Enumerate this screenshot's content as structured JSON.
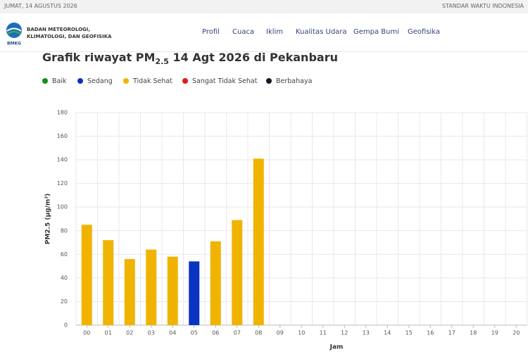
{
  "topbar": {
    "date": "JUMAT, 14 AGUSTUS 2026",
    "timezone": "STANDAR WAKTU INDONESIA"
  },
  "header": {
    "org_line1": "BADAN METEOROLOGI,",
    "org_line2": "KLIMATOLOGI, DAN GEOFISIKA",
    "logo_text": "BMKG",
    "nav": [
      "Profil",
      "Cuaca",
      "Iklim",
      "Kualitas Udara",
      "Gempa Bumi",
      "Geofisika"
    ]
  },
  "chart_data": {
    "type": "bar",
    "title": {
      "prefix": "Grafik riwayat PM",
      "sub": "2.5",
      "suffix": "14 Agt 2026 di Pekanbaru"
    },
    "legend": [
      {
        "name": "Baik",
        "color": "#16901c"
      },
      {
        "name": "Sedang",
        "color": "#0a33c2"
      },
      {
        "name": "Tidak Sehat",
        "color": "#f0b400"
      },
      {
        "name": "Sangat Tidak Sehat",
        "color": "#e31b1b"
      },
      {
        "name": "Berbahaya",
        "color": "#141a26"
      }
    ],
    "categories": [
      "00",
      "01",
      "02",
      "03",
      "04",
      "05",
      "06",
      "07",
      "08",
      "09",
      "10",
      "11",
      "12",
      "13",
      "14",
      "15",
      "16",
      "17",
      "18",
      "19",
      "20"
    ],
    "values": [
      85,
      72,
      56,
      64,
      58,
      54,
      71,
      89,
      141,
      null,
      null,
      null,
      null,
      null,
      null,
      null,
      null,
      null,
      null,
      null,
      null
    ],
    "colors": [
      "#f0b400",
      "#f0b400",
      "#f0b400",
      "#f0b400",
      "#f0b400",
      "#0a33c2",
      "#f0b400",
      "#f0b400",
      "#f0b400",
      null,
      null,
      null,
      null,
      null,
      null,
      null,
      null,
      null,
      null,
      null,
      null
    ],
    "ylim": [
      0,
      180
    ],
    "yticks": [
      0,
      20,
      40,
      60,
      80,
      100,
      120,
      140,
      160,
      180
    ],
    "ylabel": "PM2.5 (µg/m³)",
    "xlabel": "Jam",
    "grid": true
  }
}
